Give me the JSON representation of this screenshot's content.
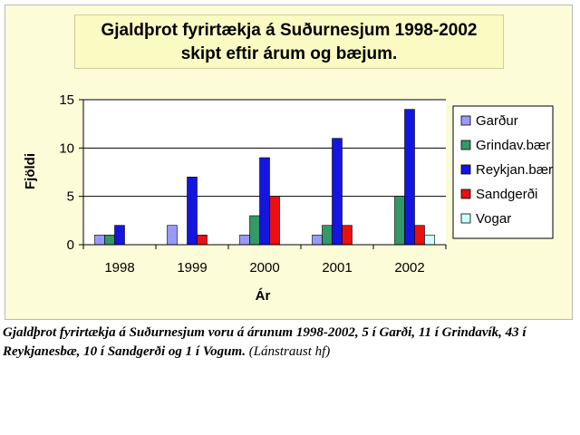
{
  "chart_data": {
    "type": "bar",
    "title_line1": "Gjaldþrot fyrirtækja á Suðurnesjum 1998-2002",
    "title_line2": "skipt eftir árum og bæjum.",
    "xlabel": "Ár",
    "ylabel": "Fjöldi",
    "ylim": [
      0,
      15
    ],
    "yticks": [
      0,
      5,
      10,
      15
    ],
    "grid": true,
    "legend_position": "right",
    "categories": [
      "1998",
      "1999",
      "2000",
      "2001",
      "2002"
    ],
    "series": [
      {
        "name": "Garður",
        "color": "#9999ff",
        "values": [
          1,
          2,
          1,
          1,
          0
        ]
      },
      {
        "name": "Grindav.bær",
        "color": "#339966",
        "values": [
          1,
          0,
          3,
          2,
          5
        ]
      },
      {
        "name": "Reykjan.bær",
        "color": "#1515e0",
        "values": [
          2,
          7,
          9,
          11,
          14
        ]
      },
      {
        "name": "Sandgerði",
        "color": "#e81010",
        "values": [
          0,
          1,
          5,
          2,
          2
        ]
      },
      {
        "name": "Vogar",
        "color": "#ccffff",
        "values": [
          0,
          0,
          0,
          0,
          1
        ]
      }
    ]
  },
  "caption": {
    "main": "Gjaldþrot fyrirtækja á Suðurnesjum voru á árunum 1998-2002, 5 í Garði, 11 í Grindavík, 43 í Reykjanesbæ, 10 í Sandgerði og 1 í Vogum.",
    "source": "(Lánstraust hf)"
  }
}
